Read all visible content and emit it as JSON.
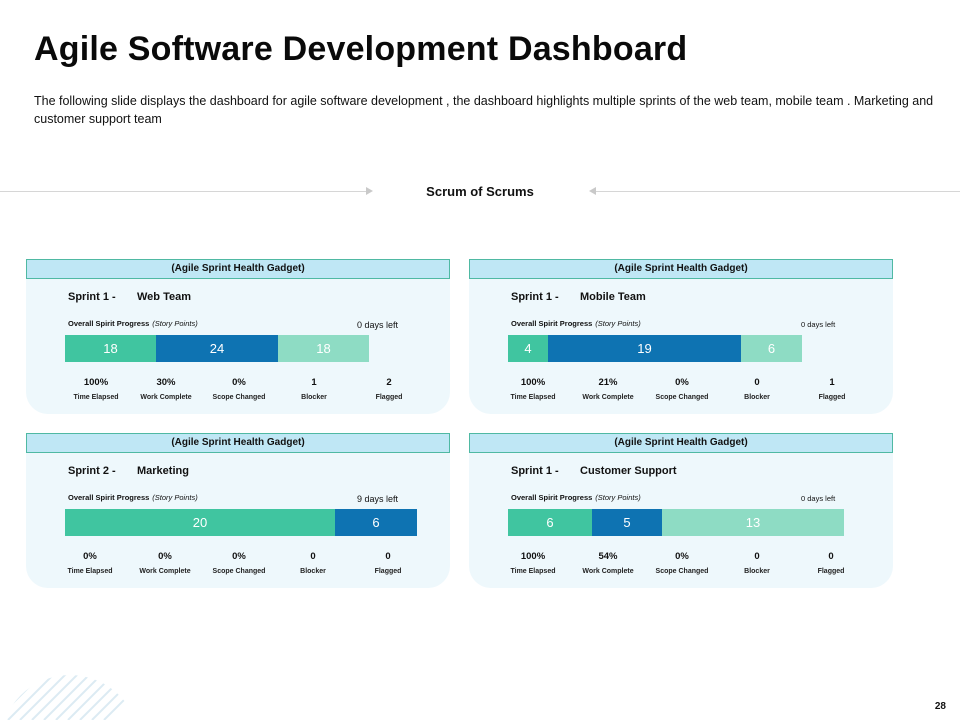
{
  "header": {
    "title": "Agile Software Development Dashboard",
    "subtitle": "The following slide displays the dashboard for agile software development , the dashboard highlights multiple sprints of the web team, mobile team . Marketing and customer support team"
  },
  "scrum_label": "Scrum of Scrums",
  "panels": [
    {
      "header": "(Agile Sprint Health Gadget)",
      "sprint": "Sprint 1 -",
      "team": "Web Team",
      "progress_label": "Overall Spirit Progress",
      "progress_unit": "(Story Points)",
      "days_left": "0 days left",
      "segments": [
        "18",
        "24",
        "18"
      ],
      "stats": [
        {
          "value": "100%",
          "label": "Time Elapsed"
        },
        {
          "value": "30%",
          "label": "Work Complete"
        },
        {
          "value": "0%",
          "label": "Scope Changed"
        },
        {
          "value": "1",
          "label": "Blocker"
        },
        {
          "value": "2",
          "label": "Flagged"
        }
      ]
    },
    {
      "header": "(Agile Sprint Health Gadget)",
      "sprint": "Sprint 1 -",
      "team": "Mobile Team",
      "progress_label": "Overall Spirit Progress",
      "progress_unit": "(Story Points)",
      "days_left": "0 days left",
      "segments": [
        "4",
        "19",
        "6"
      ],
      "stats": [
        {
          "value": "100%",
          "label": "Time Elapsed"
        },
        {
          "value": "21%",
          "label": "Work Complete"
        },
        {
          "value": "0%",
          "label": "Scope Changed"
        },
        {
          "value": "0",
          "label": "Blocker"
        },
        {
          "value": "1",
          "label": "Flagged"
        }
      ]
    },
    {
      "header": "(Agile Sprint Health Gadget)",
      "sprint": "Sprint 2 -",
      "team": "Marketing",
      "progress_label": "Overall Spirit Progress",
      "progress_unit": "(Story Points)",
      "days_left": "9 days left",
      "segments": [
        "20",
        "6"
      ],
      "stats": [
        {
          "value": "0%",
          "label": "Time Elapsed"
        },
        {
          "value": "0%",
          "label": "Work Complete"
        },
        {
          "value": "0%",
          "label": "Scope Changed"
        },
        {
          "value": "0",
          "label": "Blocker"
        },
        {
          "value": "0",
          "label": "Flagged"
        }
      ]
    },
    {
      "header": "(Agile Sprint Health Gadget)",
      "sprint": "Sprint 1 -",
      "team": "Customer Support",
      "progress_label": "Overall Spirit Progress",
      "progress_unit": "(Story Points)",
      "days_left": "0 days left",
      "segments": [
        "6",
        "5",
        "13"
      ],
      "stats": [
        {
          "value": "100%",
          "label": "Time Elapsed"
        },
        {
          "value": "54%",
          "label": "Work Complete"
        },
        {
          "value": "0%",
          "label": "Scope Changed"
        },
        {
          "value": "0",
          "label": "Blocker"
        },
        {
          "value": "0",
          "label": "Flagged"
        }
      ]
    }
  ],
  "page_number": "28",
  "colors": {
    "green": "#40c5a0",
    "blue": "#0e73b2",
    "light_green": "#8edcc4",
    "header_bg": "#bfe7f5",
    "panel_bg": "#eef8fc"
  }
}
